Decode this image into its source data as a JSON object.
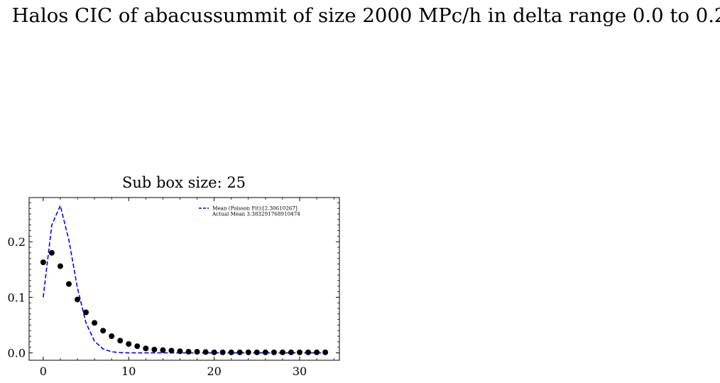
{
  "figure": {
    "suptitle": "Halos CIC of abacussummit of size 2000 MPc/h in delta range 0.0 to 0.2"
  },
  "chart_data": {
    "type": "scatter",
    "title": "Sub box size: 25",
    "xlabel": "",
    "ylabel": "",
    "xlim": [
      -1.65,
      34.65
    ],
    "ylim": [
      -0.0133,
      0.2795
    ],
    "xticks": [
      0,
      10,
      20,
      30
    ],
    "xtick_labels": [
      "0",
      "10",
      "20",
      "30"
    ],
    "yticks": [
      0.0,
      0.1,
      0.2
    ],
    "ytick_labels": [
      "0.0",
      "0.1",
      "0.2"
    ],
    "grid": false,
    "legend_position": "top-right",
    "series": [
      {
        "kind": "line",
        "style": "dashed",
        "color": "#0000ff",
        "name": "Mean (Poisson Fit):[2.30610267]",
        "x": [
          0,
          1,
          2,
          3,
          4,
          5,
          6,
          7,
          8,
          9,
          10,
          11,
          12,
          13,
          14,
          15,
          16,
          17,
          18,
          19,
          20,
          21,
          22,
          23,
          24,
          25,
          26,
          27,
          28,
          29,
          30,
          31,
          32,
          33
        ],
        "y": [
          0.1,
          0.23,
          0.265,
          0.203,
          0.117,
          0.054,
          0.021,
          0.007,
          0.002,
          0.0005,
          0.0001,
          0,
          0,
          0,
          0,
          0,
          0,
          0,
          0,
          0,
          0,
          0,
          0,
          0,
          0,
          0,
          0,
          0,
          0,
          0,
          0,
          0,
          0,
          0
        ]
      },
      {
        "kind": "points",
        "color": "#000000",
        "name": "Actual Mean 3.383291768910474",
        "x": [
          0,
          1,
          2,
          3,
          4,
          5,
          6,
          7,
          8,
          9,
          10,
          11,
          12,
          13,
          14,
          15,
          16,
          17,
          18,
          19,
          20,
          21,
          22,
          23,
          24,
          25,
          26,
          27,
          28,
          29,
          30,
          31,
          32,
          33
        ],
        "y": [
          0.163,
          0.18,
          0.156,
          0.124,
          0.096,
          0.073,
          0.054,
          0.04,
          0.03,
          0.022,
          0.016,
          0.012,
          0.008,
          0.006,
          0.005,
          0.004,
          0.003,
          0.002,
          0.002,
          0.0015,
          0.001,
          0.001,
          0.001,
          0.001,
          0.001,
          0.001,
          0.001,
          0.001,
          0.001,
          0.001,
          0.001,
          0.001,
          0.001,
          0.001
        ]
      }
    ]
  }
}
